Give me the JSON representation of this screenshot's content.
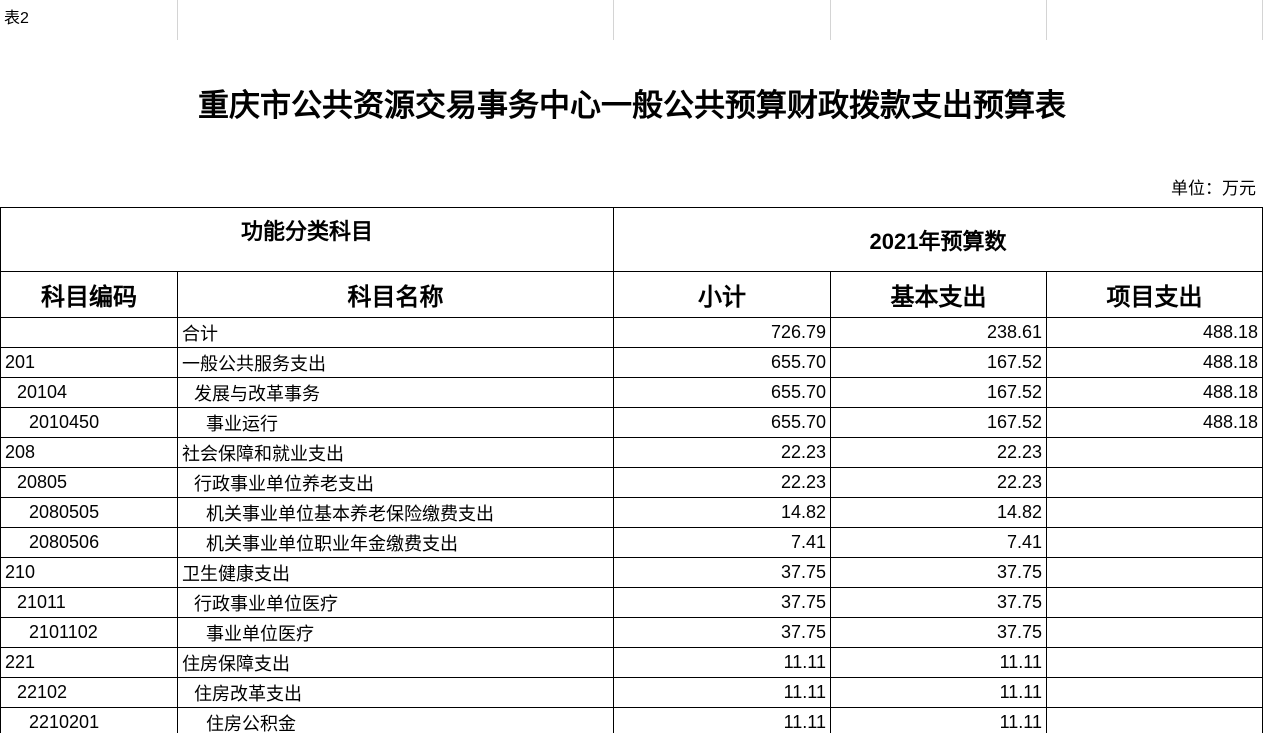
{
  "sheet_label": "表2",
  "title": "重庆市公共资源交易事务中心一般公共预算财政拨款支出预算表",
  "unit": "单位：万元",
  "table": {
    "header": {
      "group_left": "功能分类科目",
      "group_right": "2021年预算数",
      "columns": [
        "科目编码",
        "科目名称",
        "小计",
        "基本支出",
        "项目支出"
      ]
    },
    "rows": [
      {
        "name": "合计",
        "subtotal": "726.79",
        "basic": "238.61",
        "project": "488.18"
      },
      {
        "code": "201",
        "name": "一般公共服务支出",
        "subtotal": "655.70",
        "basic": "167.52",
        "project": "488.18"
      },
      {
        "code": "20104",
        "name": "发展与改革事务",
        "subtotal": "655.70",
        "basic": "167.52",
        "project": "488.18"
      },
      {
        "code": "2010450",
        "name": "事业运行",
        "subtotal": "655.70",
        "basic": "167.52",
        "project": "488.18"
      },
      {
        "code": "208",
        "name": "社会保障和就业支出",
        "subtotal": "22.23",
        "basic": "22.23"
      },
      {
        "code": "20805",
        "name": "行政事业单位养老支出",
        "subtotal": "22.23",
        "basic": "22.23"
      },
      {
        "code": "2080505",
        "name": "机关事业单位基本养老保险缴费支出",
        "subtotal": "14.82",
        "basic": "14.82"
      },
      {
        "code": "2080506",
        "name": "机关事业单位职业年金缴费支出",
        "subtotal": "7.41",
        "basic": "7.41"
      },
      {
        "code": "210",
        "name": "卫生健康支出",
        "subtotal": "37.75",
        "basic": "37.75"
      },
      {
        "code": "21011",
        "name": "行政事业单位医疗",
        "subtotal": "37.75",
        "basic": "37.75"
      },
      {
        "code": "2101102",
        "name": "事业单位医疗",
        "subtotal": "37.75",
        "basic": "37.75"
      },
      {
        "code": "221",
        "name": "住房保障支出",
        "subtotal": "11.11",
        "basic": "11.11"
      },
      {
        "code": "22102",
        "name": "住房改革支出",
        "subtotal": "11.11",
        "basic": "11.11"
      },
      {
        "code": "2210201",
        "name": "住房公积金",
        "subtotal": "11.11",
        "basic": "11.11"
      }
    ]
  }
}
